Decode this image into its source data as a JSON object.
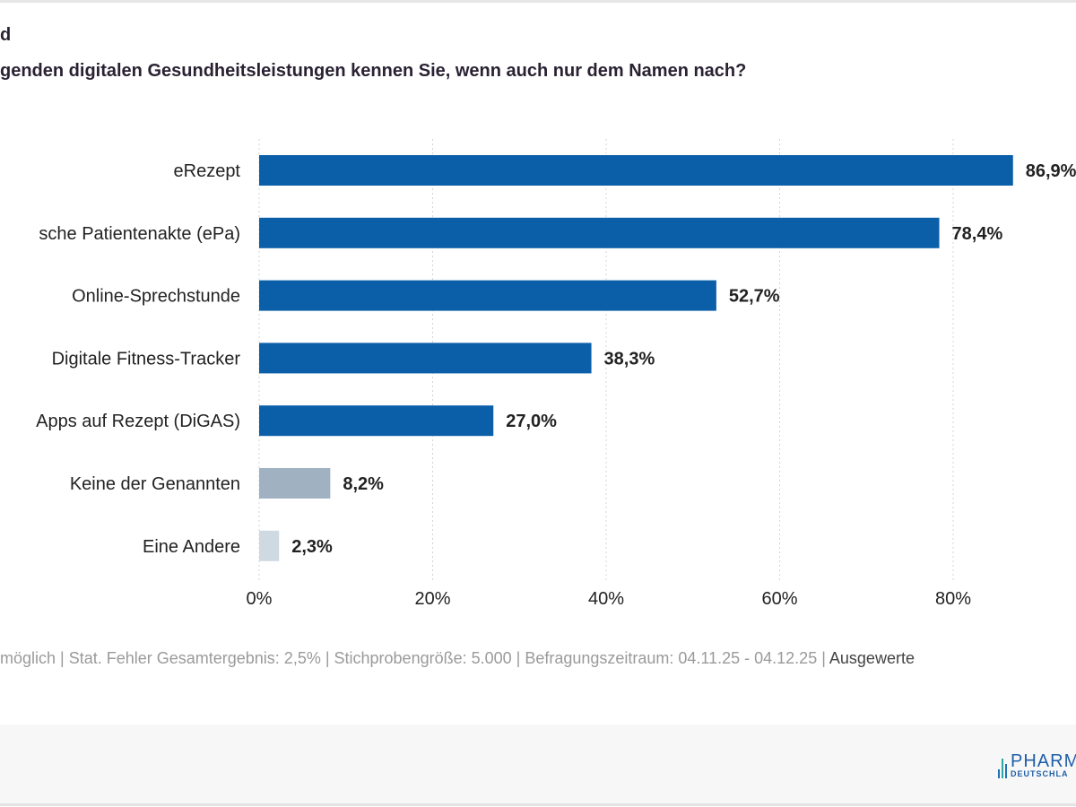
{
  "header": {
    "title": "d",
    "question": "genden digitalen Gesundheitsleistungen kennen Sie, wenn auch nur dem Namen nach?"
  },
  "chart_data": {
    "type": "bar",
    "orientation": "horizontal",
    "categories": [
      "eRezept",
      "sche Patientenakte (ePa)",
      "Online-Sprechstunde",
      "Digitale Fitness-Tracker",
      "Apps auf Rezept (DiGAS)",
      "Keine der Genannten",
      "Eine Andere"
    ],
    "values": [
      86.9,
      78.4,
      52.7,
      38.3,
      27.0,
      8.2,
      2.3
    ],
    "value_labels": [
      "86,9%",
      "78,4%",
      "52,7%",
      "38,3%",
      "27,0%",
      "8,2%",
      "2,3%"
    ],
    "colors": [
      "#0b5ea8",
      "#0b5ea8",
      "#0b5ea8",
      "#0b5ea8",
      "#0b5ea8",
      "#a0b1c1",
      "#cfd9e2"
    ],
    "xlim": [
      0,
      80
    ],
    "xticks": [
      0,
      20,
      40,
      60,
      80
    ],
    "xtick_labels": [
      "0%",
      "20%",
      "40%",
      "60%",
      "80%"
    ],
    "grid": true,
    "xlabel": "",
    "ylabel": ""
  },
  "footer": {
    "note": "möglich | Stat. Fehler Gesamtergebnis: 2,5% | Stichprobengröße: 5.000 | Befragungszeitraum: 04.11.25 - 04.12.25 |",
    "note_tail": "Ausgewerte",
    "logo_top": "PHARM",
    "logo_bottom": "DEUTSCHLA"
  }
}
